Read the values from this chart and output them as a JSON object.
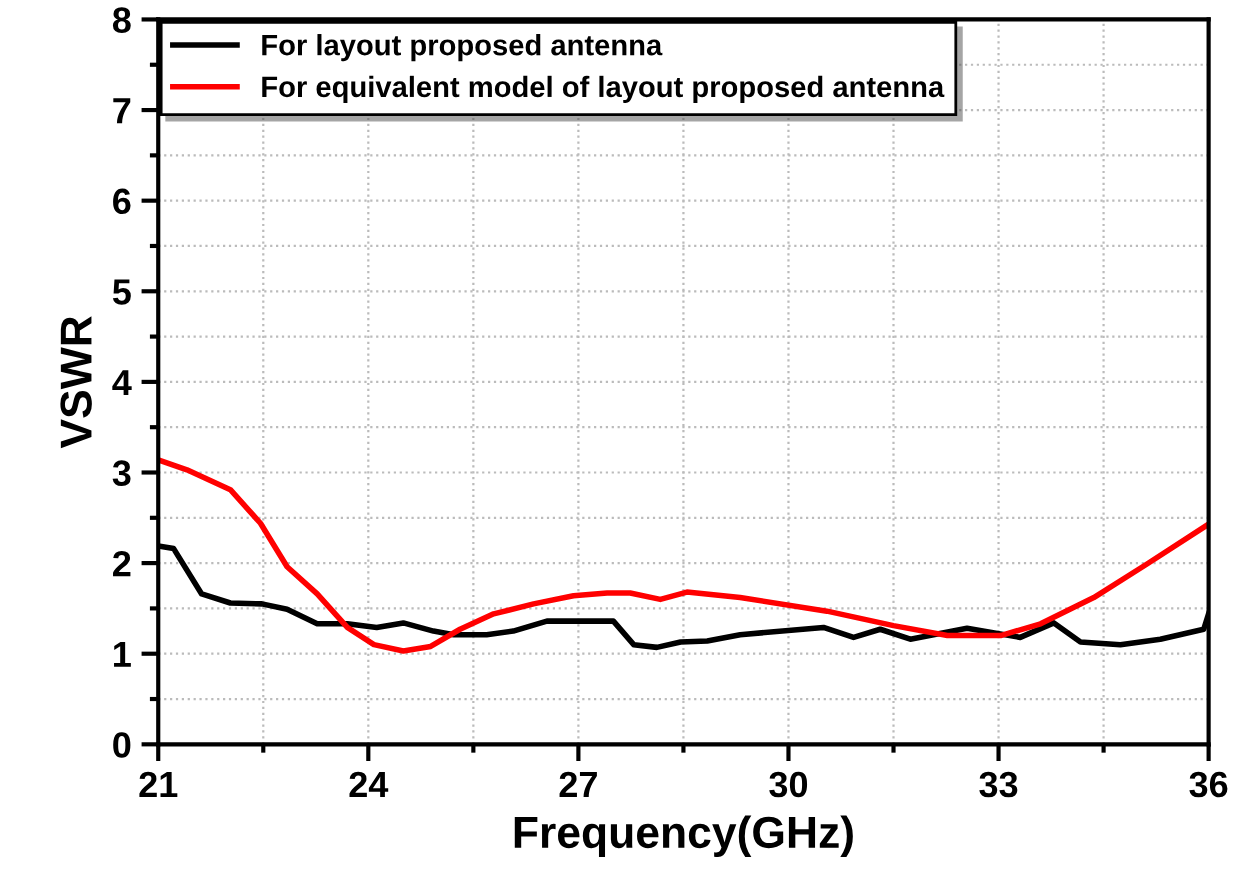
{
  "chart_data": {
    "type": "line",
    "xlabel": "Frequency(GHz)",
    "ylabel": "VSWR",
    "xlim": [
      21,
      36
    ],
    "xticks": [
      21,
      24,
      27,
      30,
      33,
      36
    ],
    "ylim": [
      0,
      8
    ],
    "yticks": [
      0,
      1,
      2,
      3,
      4,
      5,
      6,
      7,
      8
    ],
    "grid": true,
    "legend": "top left",
    "line_style": "solid",
    "marker": "none",
    "series": [
      {
        "name": "For layout proposed antenna",
        "color": "#000000",
        "x": [
          21,
          21.22,
          21.62,
          22.03,
          22.48,
          22.84,
          23.27,
          23.7,
          24.12,
          24.5,
          24.93,
          25.22,
          25.69,
          26.07,
          26.55,
          27.31,
          27.5,
          27.79,
          28.12,
          28.46,
          28.84,
          29.31,
          30.5,
          30.93,
          31.31,
          31.74,
          32.55,
          33.31,
          33.79,
          34.17,
          34.74,
          35.31,
          35.93,
          36
        ],
        "values": [
          2.19,
          2.16,
          1.66,
          1.56,
          1.55,
          1.49,
          1.33,
          1.33,
          1.29,
          1.34,
          1.25,
          1.21,
          1.21,
          1.25,
          1.36,
          1.36,
          1.36,
          1.1,
          1.07,
          1.13,
          1.14,
          1.21,
          1.29,
          1.18,
          1.27,
          1.16,
          1.28,
          1.18,
          1.34,
          1.13,
          1.1,
          1.16,
          1.27,
          1.44
        ]
      },
      {
        "name": "For equivalent model of layout proposed antenna",
        "color": "#ff0000",
        "x": [
          21,
          21.41,
          22.03,
          22.46,
          22.84,
          23.27,
          23.7,
          24.08,
          24.5,
          24.89,
          25.31,
          25.79,
          26.36,
          26.93,
          27.41,
          27.74,
          28.17,
          28.55,
          29.31,
          30.55,
          31.5,
          32.27,
          33.03,
          33.6,
          34.36,
          35.12,
          36
        ],
        "values": [
          3.14,
          3.03,
          2.81,
          2.44,
          1.96,
          1.66,
          1.29,
          1.1,
          1.03,
          1.08,
          1.27,
          1.44,
          1.55,
          1.64,
          1.67,
          1.67,
          1.6,
          1.68,
          1.62,
          1.47,
          1.31,
          1.2,
          1.2,
          1.33,
          1.62,
          1.99,
          2.43
        ]
      }
    ]
  }
}
